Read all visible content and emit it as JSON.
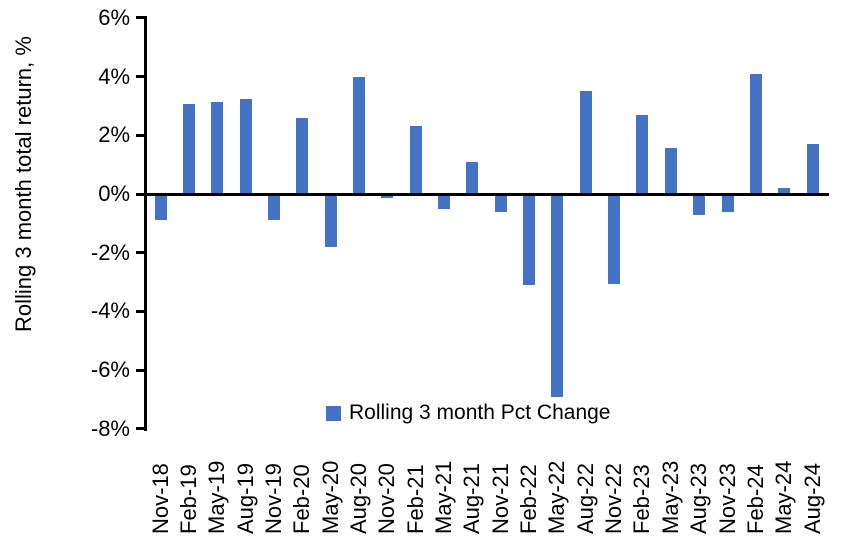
{
  "figure": {
    "background": "#ffffff",
    "axis_color": "#000000"
  },
  "y_axis": {
    "title": "Rolling 3 month total return, %",
    "tick_labels": [
      "6%",
      "4%",
      "2%",
      "0%",
      "-2%",
      "-4%",
      "-6%",
      "-8%"
    ]
  },
  "legend": {
    "marker_color": "#4472C4",
    "label": "Rolling 3 month Pct Change"
  },
  "chart_data": {
    "type": "bar",
    "title": "",
    "xlabel": "",
    "ylabel": "Rolling 3 month total return, %",
    "legend_entries": [
      "Rolling 3 month Pct Change"
    ],
    "legend_position": "inside-bottom-center",
    "grid": false,
    "ylim": [
      -8,
      6
    ],
    "ytick_step": 2,
    "value_unit": "percent",
    "bar_color": "#4472C4",
    "categories": [
      "Nov-18",
      "Feb-19",
      "May-19",
      "Aug-19",
      "Nov-19",
      "Feb-20",
      "May-20",
      "Aug-20",
      "Nov-20",
      "Feb-21",
      "May-21",
      "Aug-21",
      "Nov-21",
      "Feb-22",
      "May-22",
      "Aug-22",
      "Nov-22",
      "Feb-23",
      "May-23",
      "Aug-23",
      "Nov-23",
      "Feb-24",
      "May-24",
      "Aug-24"
    ],
    "values": [
      -0.9,
      3.05,
      3.15,
      3.25,
      -0.9,
      2.6,
      -1.8,
      4.0,
      -0.15,
      2.3,
      -0.5,
      1.1,
      -0.6,
      -3.1,
      -6.9,
      3.5,
      -3.05,
      2.7,
      1.55,
      -0.7,
      -0.6,
      4.1,
      0.2,
      1.7
    ]
  }
}
